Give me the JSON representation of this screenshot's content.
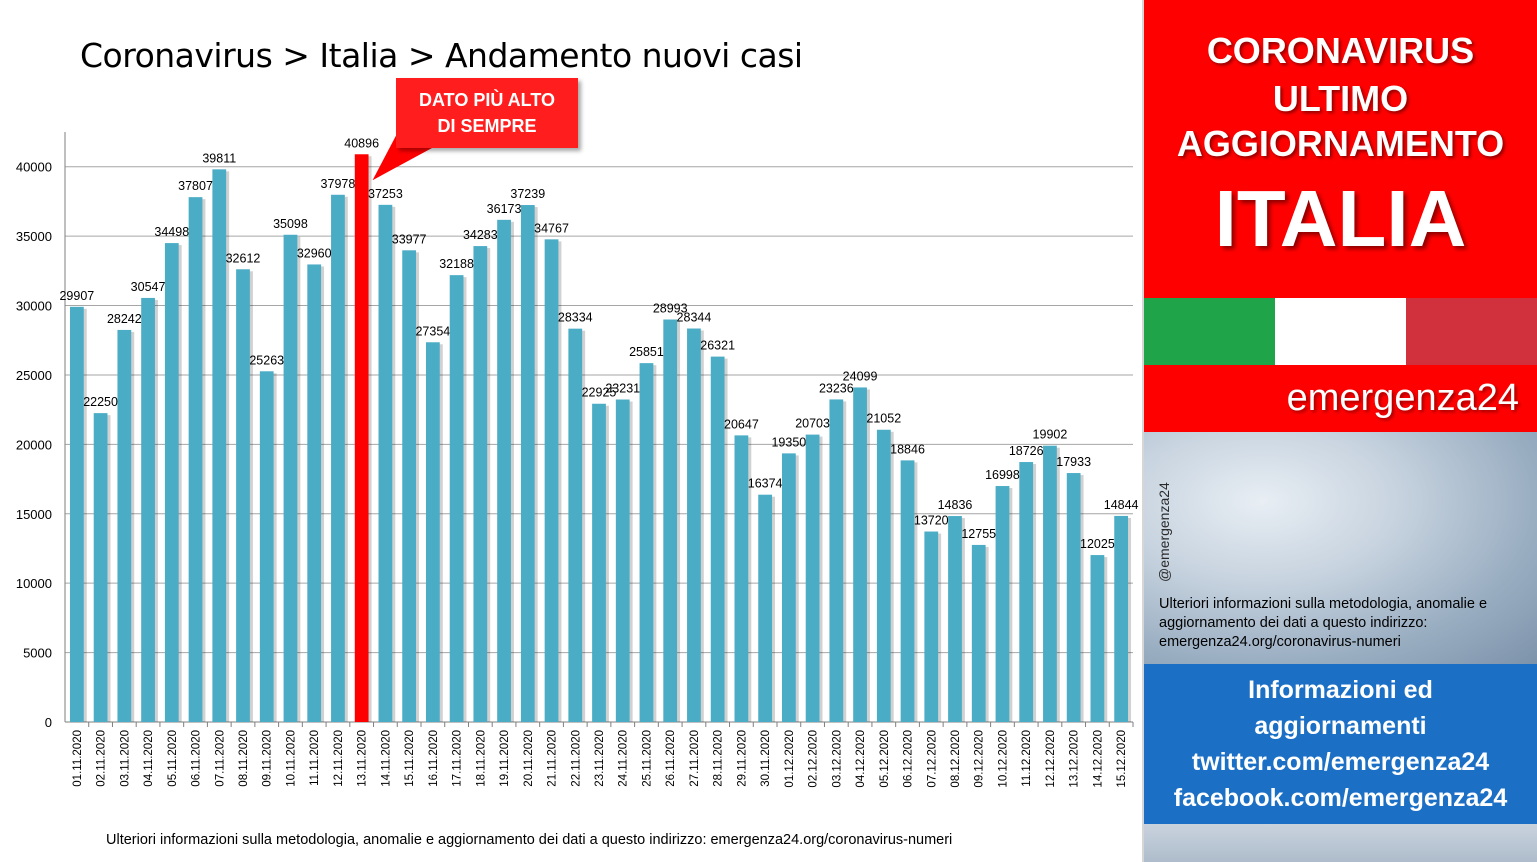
{
  "chart_data": {
    "type": "bar",
    "title": "Coronavirus > Italia > Andamento nuovi casi",
    "categories": [
      "01.11.2020",
      "02.11.2020",
      "03.11.2020",
      "04.11.2020",
      "05.11.2020",
      "06.11.2020",
      "07.11.2020",
      "08.11.2020",
      "09.11.2020",
      "10.11.2020",
      "11.11.2020",
      "12.11.2020",
      "13.11.2020",
      "14.11.2020",
      "15.11.2020",
      "16.11.2020",
      "17.11.2020",
      "18.11.2020",
      "19.11.2020",
      "20.11.2020",
      "21.11.2020",
      "22.11.2020",
      "23.11.2020",
      "24.11.2020",
      "25.11.2020",
      "26.11.2020",
      "27.11.2020",
      "28.11.2020",
      "29.11.2020",
      "30.11.2020",
      "01.12.2020",
      "02.12.2020",
      "03.12.2020",
      "04.12.2020",
      "05.12.2020",
      "06.12.2020",
      "07.12.2020",
      "08.12.2020",
      "09.12.2020",
      "10.12.2020",
      "11.12.2020",
      "12.12.2020",
      "13.12.2020",
      "14.12.2020",
      "15.12.2020"
    ],
    "values": [
      29907,
      22250,
      28242,
      30547,
      34498,
      37807,
      39811,
      32612,
      25263,
      35098,
      32960,
      37978,
      40896,
      37253,
      33977,
      27354,
      32188,
      34283,
      36173,
      37239,
      34767,
      28334,
      22925,
      23231,
      25851,
      28993,
      28344,
      26321,
      20647,
      16374,
      19350,
      20703,
      23236,
      24099,
      21052,
      18846,
      13720,
      14836,
      12755,
      16998,
      18726,
      19902,
      17933,
      12025,
      14844
    ],
    "ylim": [
      0,
      42500
    ],
    "yticks": [
      0,
      5000,
      10000,
      15000,
      20000,
      25000,
      30000,
      35000,
      40000
    ],
    "highlight_index": 12,
    "bar_color": "#4bacc6",
    "highlight_color": "#ff0000",
    "grid": true
  },
  "callout": {
    "line1": "DATO PIÙ ALTO",
    "line2": "DI SEMPRE"
  },
  "footnote": "Ulteriori informazioni sulla metodologia, anomalie e aggiornamento dei dati a questo indirizzo: emergenza24.org/coronavirus-numeri",
  "sidebar": {
    "banner_lines": [
      "CORONAVIRUS",
      "ULTIMO",
      "AGGIORNAMENTO"
    ],
    "country": "ITALIA",
    "flag_colors": [
      "#20a44a",
      "#ffffff",
      "#d0313c"
    ],
    "brand": "emergenza24",
    "handle": "@emergenza24",
    "note": "Ulteriori informazioni sulla metodologia, anomalie e aggiornamento dei dati a questo indirizzo: emergenza24.org/coronavirus-numeri",
    "info_lines": [
      "Informazioni ed",
      "aggiornamenti",
      "twitter.com/emergenza24",
      "facebook.com/emergenza24"
    ]
  }
}
